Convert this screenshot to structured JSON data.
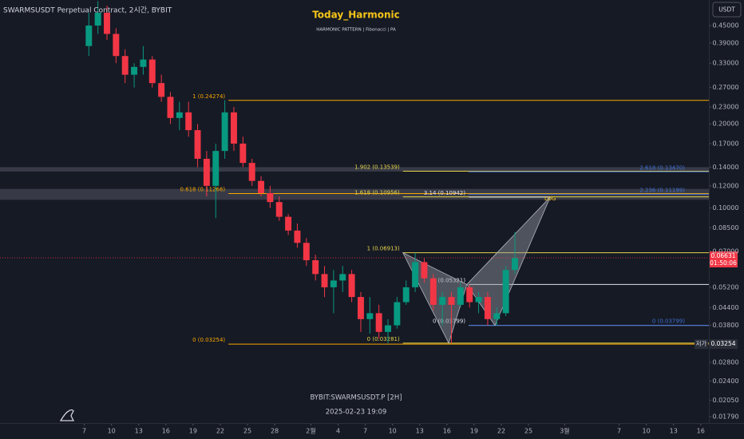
{
  "chart_data": {
    "type": "candlestick",
    "title": "SWARMSUSDT Perpetual Contract, 2시간, BYBIT",
    "overlay_title": "Today_Harmonic",
    "overlay_subtitle": "HARMONIC PATTERN | Fibonacci | PA",
    "watermark": "BYBIT:SWARMSUSDT.P  [2H]",
    "watermark_date": "2025-02-23  19:09",
    "currency": "USDT",
    "log_scale": true,
    "up_color": "#089981",
    "down_color": "#f23645",
    "xlim": [
      -2.3,
      75.9
    ],
    "ylim": [
      0.01698,
      0.5555
    ],
    "xticks": [
      7,
      10,
      13,
      16,
      19,
      22,
      25,
      28,
      {
        "value": 32,
        "label": "2월"
      },
      {
        "value": 35,
        "label": "4"
      },
      {
        "value": 38,
        "label": "7"
      },
      {
        "value": 41,
        "label": "10"
      },
      {
        "value": 44,
        "label": "13"
      },
      {
        "value": 47,
        "label": "16"
      },
      {
        "value": 50,
        "label": "19"
      },
      {
        "value": 53,
        "label": "22"
      },
      {
        "value": 56,
        "label": "25"
      },
      {
        "value": 60,
        "label": "3월"
      },
      {
        "value": 66,
        "label": "7"
      },
      {
        "value": 69,
        "label": "10"
      },
      {
        "value": 72,
        "label": "13"
      },
      {
        "value": 75,
        "label": "16"
      }
    ],
    "yticks": [
      {
        "value": 0.45,
        "label": "0.45000"
      },
      {
        "value": 0.39,
        "label": "0.39000"
      },
      {
        "value": 0.33,
        "label": "0.33000"
      },
      {
        "value": 0.27,
        "label": "0.27000"
      },
      {
        "value": 0.23,
        "label": "0.23000"
      },
      {
        "value": 0.2,
        "label": "0.20000"
      },
      {
        "value": 0.17,
        "label": "0.17000"
      },
      {
        "value": 0.14,
        "label": "0.14000"
      },
      {
        "value": 0.12,
        "label": "0.12000"
      },
      {
        "value": 0.1,
        "label": "0.10000"
      },
      {
        "value": 0.085,
        "label": "0.08500"
      },
      {
        "value": 0.07,
        "label": "0.07000"
      },
      {
        "value": 0.052,
        "label": "0.05200"
      },
      {
        "value": 0.044,
        "label": "0.04400"
      },
      {
        "value": 0.038,
        "label": "0.03800"
      },
      {
        "value": 0.028,
        "label": "0.02800"
      },
      {
        "value": 0.024,
        "label": "0.02400"
      },
      {
        "value": 0.0205,
        "label": "0.02050"
      },
      {
        "value": 0.0179,
        "label": "0.01790"
      }
    ],
    "x": [
      7,
      8,
      9,
      10,
      11,
      12,
      13,
      14,
      15,
      16,
      17,
      18,
      19,
      20,
      21,
      22,
      23,
      24,
      25,
      26,
      27,
      28,
      29,
      30,
      31,
      32,
      33,
      34,
      35,
      36,
      37,
      38,
      39,
      40,
      41,
      42,
      43,
      44,
      45,
      46,
      47,
      48,
      49,
      50,
      51,
      52,
      53,
      54
    ],
    "open": [
      0.38,
      0.45,
      0.5,
      0.42,
      0.35,
      0.3,
      0.32,
      0.34,
      0.28,
      0.25,
      0.21,
      0.22,
      0.19,
      0.15,
      0.12,
      0.16,
      0.22,
      0.17,
      0.145,
      0.125,
      0.113,
      0.105,
      0.093,
      0.083,
      0.075,
      0.065,
      0.058,
      0.052,
      0.055,
      0.058,
      0.048,
      0.04,
      0.042,
      0.036,
      0.038,
      0.046,
      0.052,
      0.064,
      0.056,
      0.045,
      0.048,
      0.045,
      0.052,
      0.046,
      0.048,
      0.04,
      0.042,
      0.06
    ],
    "high": [
      0.5,
      0.55,
      0.53,
      0.44,
      0.37,
      0.33,
      0.38,
      0.35,
      0.3,
      0.26,
      0.24,
      0.24,
      0.2,
      0.16,
      0.17,
      0.243,
      0.23,
      0.18,
      0.15,
      0.13,
      0.12,
      0.11,
      0.095,
      0.088,
      0.078,
      0.068,
      0.062,
      0.06,
      0.062,
      0.06,
      0.05,
      0.048,
      0.045,
      0.04,
      0.048,
      0.055,
      0.0691,
      0.066,
      0.058,
      0.05,
      0.05,
      0.054,
      0.0532,
      0.05,
      0.05,
      0.044,
      0.062,
      0.082
    ],
    "low": [
      0.35,
      0.42,
      0.4,
      0.33,
      0.28,
      0.27,
      0.3,
      0.27,
      0.24,
      0.2,
      0.19,
      0.18,
      0.14,
      0.11,
      0.092,
      0.15,
      0.16,
      0.14,
      0.12,
      0.11,
      0.1,
      0.09,
      0.08,
      0.072,
      0.062,
      0.055,
      0.048,
      0.042,
      0.05,
      0.046,
      0.036,
      0.0355,
      0.034,
      0.0328,
      0.037,
      0.045,
      0.05,
      0.054,
      0.043,
      0.038,
      0.0328,
      0.044,
      0.044,
      0.042,
      0.038,
      0.038,
      0.041,
      0.058
    ],
    "close": [
      0.45,
      0.5,
      0.42,
      0.35,
      0.3,
      0.32,
      0.34,
      0.28,
      0.25,
      0.21,
      0.22,
      0.19,
      0.15,
      0.12,
      0.16,
      0.22,
      0.17,
      0.145,
      0.125,
      0.113,
      0.105,
      0.093,
      0.083,
      0.075,
      0.065,
      0.058,
      0.052,
      0.055,
      0.058,
      0.048,
      0.04,
      0.042,
      0.036,
      0.038,
      0.046,
      0.052,
      0.064,
      0.056,
      0.045,
      0.048,
      0.045,
      0.052,
      0.046,
      0.048,
      0.04,
      0.042,
      0.06,
      0.0663
    ],
    "zones": [
      [
        0.135,
        0.14
      ],
      [
        0.107,
        0.117
      ]
    ],
    "levels": [
      {
        "label": "1 (0.24274)",
        "value": 0.24274,
        "color": "#f7a600",
        "from": 22.9,
        "to": 75.9,
        "label_side": "left"
      },
      {
        "label": "0.618 (0.11266)",
        "value": 0.11266,
        "color": "#f7a600",
        "from": 22.9,
        "to": 75.9,
        "label_side": "left"
      },
      {
        "label": "0 (0.03254)",
        "value": 0.03254,
        "color": "#f7a600",
        "from": 22.9,
        "to": 75.9,
        "label_side": "left"
      },
      {
        "label": "1.902 (0.13539)",
        "value": 0.13539,
        "color": "#e6d34a",
        "from": 42.15,
        "to": 75.9,
        "label_side": "left"
      },
      {
        "label": "1.618 (0.10956)",
        "value": 0.10956,
        "color": "#e6d34a",
        "from": 42.15,
        "to": 75.9,
        "label_side": "left"
      },
      {
        "label": "1 (0.06913)",
        "value": 0.06913,
        "color": "#e6d34a",
        "from": 42.15,
        "to": 75.9,
        "label_side": "left"
      },
      {
        "label": "0 (0.03281)",
        "value": 0.03281,
        "color": "#e6d34a",
        "from": 42.15,
        "to": 75.9,
        "label_side": "left"
      },
      {
        "label": "3.14 (0.10942)",
        "value": 0.10942,
        "color": "#e0e3eb",
        "from": 49.4,
        "to": 58.4,
        "label_side": "left"
      },
      {
        "label": "1 (0.05321)",
        "value": 0.05321,
        "color": "#e0e3eb",
        "from": 49.4,
        "to": 75.9,
        "label_side": "left"
      },
      {
        "label": "0 (0.03799)",
        "value": 0.03799,
        "color": "#e0e3eb",
        "from": 49.4,
        "to": 75.9,
        "label_side": "left"
      },
      {
        "label": "2.618 (0.13470)",
        "value": 0.1347,
        "color": "#3f6fd1",
        "from": 49.4,
        "to": 75.9,
        "label_side": "right"
      },
      {
        "label": "2.236 (0.11199)",
        "value": 0.11199,
        "color": "#3f6fd1",
        "from": 49.4,
        "to": 75.9,
        "label_side": "right"
      },
      {
        "label": "0 (0.03799)",
        "value": 0.03799,
        "color": "#3f6fd1",
        "from": 49.4,
        "to": 75.9,
        "label_side": "right"
      }
    ],
    "pattern": {
      "label": "LOG",
      "x": [
        42.15,
        47.2,
        49.2,
        52.3,
        58.4
      ],
      "y": [
        0.06913,
        0.03281,
        0.05321,
        0.03799,
        0.10942
      ]
    },
    "current_price": 0.06631,
    "countdown": "01:50:06",
    "low_label": "저가",
    "low_price": 0.03254
  }
}
